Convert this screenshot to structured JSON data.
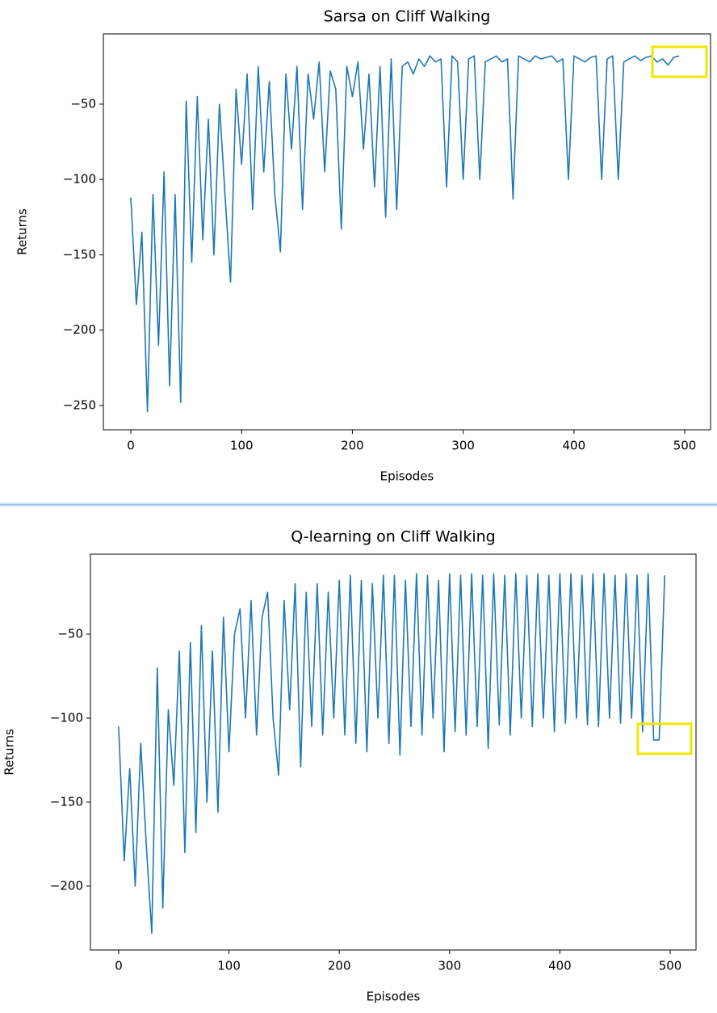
{
  "chart_data": [
    {
      "type": "line",
      "title": "Sarsa on Cliff Walking",
      "x_label": "Episodes",
      "y_label": "Returns",
      "x": [
        0,
        5,
        10,
        15,
        20,
        25,
        30,
        35,
        40,
        45,
        50,
        55,
        60,
        65,
        70,
        75,
        80,
        85,
        90,
        95,
        100,
        105,
        110,
        115,
        120,
        125,
        130,
        135,
        140,
        145,
        150,
        155,
        160,
        165,
        170,
        175,
        180,
        185,
        190,
        195,
        200,
        205,
        210,
        215,
        220,
        225,
        230,
        235,
        240,
        245,
        250,
        255,
        260,
        265,
        270,
        275,
        280,
        285,
        290,
        295,
        300,
        305,
        310,
        315,
        320,
        325,
        330,
        335,
        340,
        345,
        350,
        355,
        360,
        365,
        370,
        375,
        380,
        385,
        390,
        395,
        400,
        405,
        410,
        415,
        420,
        425,
        430,
        435,
        440,
        445,
        450,
        455,
        460,
        465,
        470,
        475,
        480,
        485,
        490,
        495
      ],
      "series": [
        {
          "name": "Sarsa",
          "color": "#1f77b4",
          "values": [
            -112,
            -183,
            -135,
            -254,
            -110,
            -210,
            -95,
            -237,
            -110,
            -248,
            -48,
            -155,
            -45,
            -140,
            -60,
            -150,
            -50,
            -110,
            -168,
            -40,
            -90,
            -30,
            -120,
            -25,
            -95,
            -35,
            -110,
            -148,
            -30,
            -80,
            -25,
            -120,
            -30,
            -60,
            -22,
            -95,
            -28,
            -40,
            -133,
            -25,
            -45,
            -22,
            -80,
            -30,
            -105,
            -25,
            -125,
            -20,
            -120,
            -25,
            -22,
            -30,
            -20,
            -25,
            -18,
            -22,
            -20,
            -105,
            -18,
            -22,
            -100,
            -20,
            -18,
            -100,
            -22,
            -20,
            -18,
            -22,
            -20,
            -113,
            -18,
            -20,
            -22,
            -18,
            -20,
            -19,
            -18,
            -22,
            -20,
            -100,
            -18,
            -20,
            -22,
            -19,
            -18,
            -100,
            -20,
            -18,
            -100,
            -22,
            -20,
            -18,
            -21,
            -19,
            -18,
            -22,
            -20,
            -24,
            -19,
            -18
          ]
        }
      ],
      "xlim": [
        -24.8,
        523.3
      ],
      "ylim": [
        -266.1,
        -3.4
      ],
      "xticks": [
        0,
        100,
        200,
        300,
        400,
        500
      ],
      "yticks": [
        {
          "value": -250,
          "label": "−250"
        },
        {
          "value": -200,
          "label": "−200"
        },
        {
          "value": -150,
          "label": "−150"
        },
        {
          "value": -100,
          "label": "−100"
        },
        {
          "value": -50,
          "label": "−50"
        }
      ]
    },
    {
      "type": "line",
      "title": "Q-learning on Cliff Walking",
      "x_label": "Episodes",
      "y_label": "Returns",
      "x": [
        0,
        5,
        10,
        15,
        20,
        25,
        30,
        35,
        40,
        45,
        50,
        55,
        60,
        65,
        70,
        75,
        80,
        85,
        90,
        95,
        100,
        105,
        110,
        115,
        120,
        125,
        130,
        135,
        140,
        145,
        150,
        155,
        160,
        165,
        170,
        175,
        180,
        185,
        190,
        195,
        200,
        205,
        210,
        215,
        220,
        225,
        230,
        235,
        240,
        245,
        250,
        255,
        260,
        265,
        270,
        275,
        280,
        285,
        290,
        295,
        300,
        305,
        310,
        315,
        320,
        325,
        330,
        335,
        340,
        345,
        350,
        355,
        360,
        365,
        370,
        375,
        380,
        385,
        390,
        395,
        400,
        405,
        410,
        415,
        420,
        425,
        430,
        435,
        440,
        445,
        450,
        455,
        460,
        465,
        470,
        475,
        480,
        485,
        490,
        495
      ],
      "series": [
        {
          "name": "Q-learning",
          "color": "#1f77b4",
          "values": [
            -105,
            -185,
            -130,
            -200,
            -115,
            -175,
            -228,
            -70,
            -213,
            -95,
            -140,
            -60,
            -180,
            -55,
            -168,
            -45,
            -150,
            -60,
            -156,
            -40,
            -120,
            -50,
            -35,
            -100,
            -30,
            -110,
            -40,
            -25,
            -100,
            -134,
            -30,
            -95,
            -20,
            -129,
            -25,
            -105,
            -20,
            -110,
            -25,
            -100,
            -18,
            -110,
            -15,
            -115,
            -18,
            -120,
            -20,
            -100,
            -15,
            -115,
            -15,
            -122,
            -18,
            -105,
            -14,
            -110,
            -15,
            -100,
            -18,
            -120,
            -14,
            -108,
            -15,
            -110,
            -14,
            -105,
            -15,
            -118,
            -14,
            -104,
            -15,
            -110,
            -14,
            -100,
            -15,
            -105,
            -14,
            -100,
            -15,
            -108,
            -14,
            -103,
            -14,
            -100,
            -15,
            -104,
            -14,
            -105,
            -14,
            -100,
            -15,
            -103,
            -14,
            -100,
            -15,
            -108,
            -14,
            -113,
            -113,
            -15
          ]
        }
      ],
      "xlim": [
        -25.6,
        523.4
      ],
      "ylim": [
        -238.0,
        -2.4
      ],
      "xticks": [
        0,
        100,
        200,
        300,
        400,
        500
      ],
      "yticks": [
        {
          "value": -200,
          "label": "−200"
        },
        {
          "value": -150,
          "label": "−150"
        },
        {
          "value": -100,
          "label": "−100"
        },
        {
          "value": -50,
          "label": "−50"
        }
      ]
    }
  ]
}
